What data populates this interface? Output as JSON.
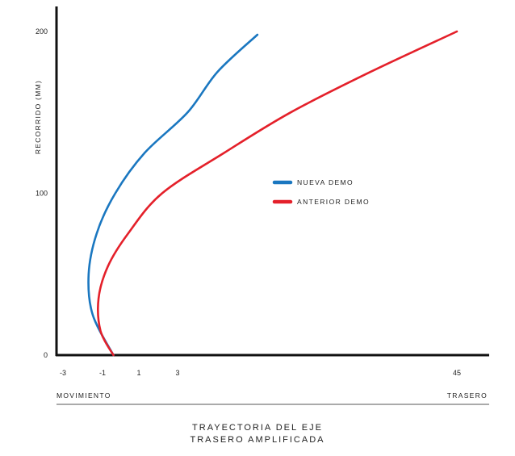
{
  "chart_data": {
    "type": "line",
    "ylabel": "RECORRIDO (MM)",
    "y_ticks": [
      "0",
      "100",
      "200"
    ],
    "ylim": [
      0,
      200
    ],
    "x_ticks": [
      "-3",
      "-1",
      "1",
      "3",
      "45"
    ],
    "x_footer_left": "MOVIMIENTO",
    "x_footer_right": "TRASERO",
    "title_lines": [
      "TRAYECTORIA DEL EJE",
      "TRASERO AMPLIFICADA"
    ],
    "legend_position": "center-right",
    "grid": false,
    "series": [
      {
        "name": "NUEVA DEMO",
        "color": "#1a77c0",
        "points": [
          [
            -0.4,
            0
          ],
          [
            -1.5,
            25
          ],
          [
            -1.7,
            50
          ],
          [
            -1.3,
            75
          ],
          [
            -0.3,
            100
          ],
          [
            1.3,
            125
          ],
          [
            4.5,
            150
          ],
          [
            9,
            175
          ],
          [
            15,
            198
          ]
        ]
      },
      {
        "name": "ANTERIOR DEMO",
        "color": "#e4202a",
        "points": [
          [
            -0.4,
            0
          ],
          [
            -1.1,
            15
          ],
          [
            -1.2,
            35
          ],
          [
            -0.7,
            55
          ],
          [
            0.4,
            75
          ],
          [
            2.2,
            100
          ],
          [
            10,
            125
          ],
          [
            20,
            150
          ],
          [
            32,
            175
          ],
          [
            45,
            200
          ]
        ]
      }
    ]
  }
}
